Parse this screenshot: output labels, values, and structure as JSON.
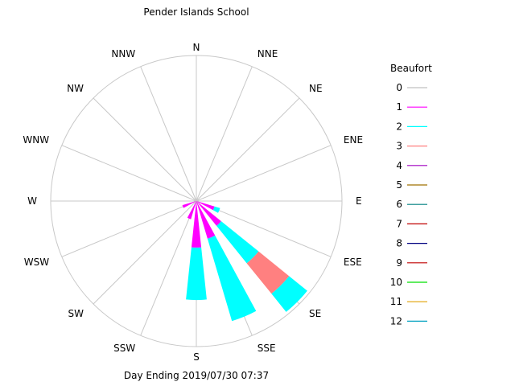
{
  "chart_data": {
    "type": "wind-rose",
    "title": "Pender Islands School",
    "footer": "Day Ending 2019/07/30 07:37",
    "directions": [
      "N",
      "NNE",
      "NE",
      "ENE",
      "E",
      "ESE",
      "SE",
      "SSE",
      "S",
      "SSW",
      "SW",
      "WSW",
      "W",
      "WNW",
      "NW",
      "NNW"
    ],
    "grid": true,
    "legend": {
      "title": "Beaufort",
      "position": "right",
      "entries": [
        {
          "label": "0",
          "color": "#c0c0c0"
        },
        {
          "label": "1",
          "color": "#ff00ff"
        },
        {
          "label": "2",
          "color": "#00ffff"
        },
        {
          "label": "3",
          "color": "#ff8080"
        },
        {
          "label": "4",
          "color": "#a000c0"
        },
        {
          "label": "5",
          "color": "#a07000"
        },
        {
          "label": "6",
          "color": "#008080"
        },
        {
          "label": "7",
          "color": "#c00000"
        },
        {
          "label": "8",
          "color": "#000080"
        },
        {
          "label": "9",
          "color": "#c00000"
        },
        {
          "label": "10",
          "color": "#00e000"
        },
        {
          "label": "11",
          "color": "#e0a000"
        },
        {
          "label": "12",
          "color": "#00a0c0"
        }
      ]
    },
    "max_radius_value": 1.0,
    "wedges": [
      {
        "direction": "ESE",
        "bands": [
          {
            "beaufort": "1",
            "value": 0.13
          },
          {
            "beaufort": "2",
            "value": 0.17
          }
        ]
      },
      {
        "direction": "SE",
        "bands": [
          {
            "beaufort": "1",
            "value": 0.22
          },
          {
            "beaufort": "2",
            "value": 0.55
          },
          {
            "beaufort": "3",
            "value": 0.82
          },
          {
            "beaufort": "2",
            "value": 0.98
          }
        ]
      },
      {
        "direction": "SSE",
        "bands": [
          {
            "beaufort": "1",
            "value": 0.27
          },
          {
            "beaufort": "2",
            "value": 0.86
          }
        ]
      },
      {
        "direction": "S",
        "bands": [
          {
            "beaufort": "1",
            "value": 0.32
          },
          {
            "beaufort": "2",
            "value": 0.68
          }
        ]
      },
      {
        "direction": "SSW",
        "bands": [
          {
            "beaufort": "1",
            "value": 0.13
          }
        ]
      },
      {
        "direction": "WSW",
        "bands": [
          {
            "beaufort": "1",
            "value": 0.1
          }
        ]
      }
    ]
  }
}
